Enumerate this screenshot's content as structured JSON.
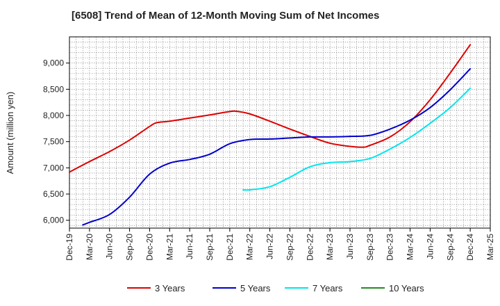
{
  "chart_data": {
    "type": "line",
    "title": "[6508]  Trend of Mean of 12-Month Moving Sum of Net Incomes",
    "xlabel": "",
    "ylabel": "Amount (million yen)",
    "x_ticks": [
      "Dec-19",
      "Mar-20",
      "Jun-20",
      "Sep-20",
      "Dec-20",
      "Mar-21",
      "Jun-21",
      "Sep-21",
      "Dec-21",
      "Mar-22",
      "Jun-22",
      "Sep-22",
      "Dec-22",
      "Mar-23",
      "Jun-23",
      "Sep-23",
      "Dec-23",
      "Mar-24",
      "Jun-24",
      "Sep-24",
      "Dec-24",
      "Mar-25"
    ],
    "y_ticks": [
      6000,
      6500,
      7000,
      7500,
      8000,
      8500,
      9000
    ],
    "y_tick_labels": [
      "6,000",
      "6,500",
      "7,000",
      "7,500",
      "8,000",
      "8,500",
      "9,000"
    ],
    "ylim": [
      5850,
      9500
    ],
    "xlim": [
      "Dec-19",
      "Mar-25"
    ],
    "grid": true,
    "legend_position": "bottom",
    "series": [
      {
        "name": "3 Years",
        "color": "#dd0000",
        "x": [
          "Dec-19",
          "Mar-20",
          "Jun-20",
          "Sep-20",
          "Dec-20",
          "Jan-21",
          "Mar-21",
          "Jun-21",
          "Sep-21",
          "Dec-21",
          "Jan-22",
          "Mar-22",
          "Jun-22",
          "Sep-22",
          "Dec-22",
          "Mar-23",
          "Jun-23",
          "Aug-23",
          "Sep-23",
          "Dec-23",
          "Mar-24",
          "Jun-24",
          "Sep-24",
          "Dec-24"
        ],
        "y": [
          6920,
          7120,
          7310,
          7530,
          7790,
          7860,
          7890,
          7950,
          8010,
          8075,
          8080,
          8030,
          7890,
          7740,
          7600,
          7470,
          7410,
          7395,
          7430,
          7590,
          7880,
          8300,
          8810,
          9350
        ]
      },
      {
        "name": "5 Years",
        "color": "#0000cc",
        "x": [
          "Feb-20",
          "Mar-20",
          "Jun-20",
          "Sep-20",
          "Dec-20",
          "Mar-21",
          "Jun-21",
          "Sep-21",
          "Dec-21",
          "Mar-22",
          "Jun-22",
          "Sep-22",
          "Dec-22",
          "Mar-23",
          "Jun-23",
          "Sep-23",
          "Dec-23",
          "Mar-24",
          "Jun-24",
          "Sep-24",
          "Dec-24"
        ],
        "y": [
          5910,
          5960,
          6110,
          6440,
          6880,
          7090,
          7160,
          7260,
          7460,
          7540,
          7550,
          7570,
          7590,
          7590,
          7600,
          7620,
          7740,
          7910,
          8150,
          8490,
          8890
        ]
      },
      {
        "name": "7 Years",
        "color": "#00e5ee",
        "x": [
          "Feb-22",
          "Mar-22",
          "Jun-22",
          "Sep-22",
          "Dec-22",
          "Mar-23",
          "Jun-23",
          "Sep-23",
          "Dec-23",
          "Mar-24",
          "Jun-24",
          "Sep-24",
          "Dec-24"
        ],
        "y": [
          6580,
          6580,
          6640,
          6820,
          7020,
          7100,
          7120,
          7180,
          7360,
          7580,
          7850,
          8150,
          8520
        ]
      },
      {
        "name": "10 Years",
        "color": "#228b22",
        "x": [],
        "y": []
      }
    ]
  }
}
